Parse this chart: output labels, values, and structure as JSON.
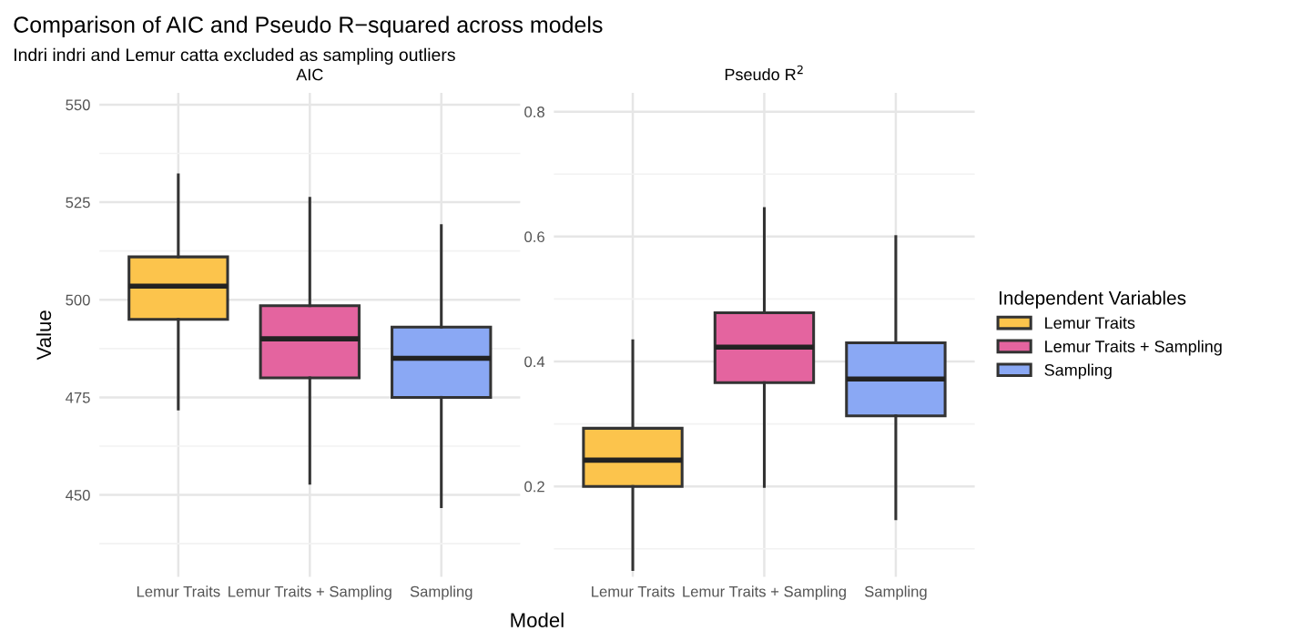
{
  "chart_data": [
    {
      "type": "box",
      "title": "Comparison of AIC and Pseudo R−squared across models",
      "subtitle": "Indri indri and Lemur catta excluded as sampling outliers",
      "annotations": [
        "AIC"
      ],
      "xlabel": "Model",
      "ylabel": "Value",
      "categories": [
        "Lemur Traits",
        "Lemur Traits + Sampling",
        "Sampling"
      ],
      "series": [
        {
          "color": "#fcc44c",
          "boxes": [
            {
              "low": 472,
              "q1": 495,
              "median": 503.5,
              "q3": 511,
              "high": 532
            },
            null,
            null
          ]
        },
        {
          "color": "#e4649f",
          "boxes": [
            null,
            {
              "low": 453,
              "q1": 480,
              "median": 490,
              "q3": 498.5,
              "high": 526
            },
            null
          ]
        },
        {
          "color": "#8aa8f4",
          "boxes": [
            null,
            null,
            {
              "low": 447,
              "q1": 475,
              "median": 485,
              "q3": 493,
              "high": 519
            }
          ]
        }
      ],
      "ylim": [
        429,
        553
      ],
      "yticks": [
        450,
        475,
        500,
        525,
        550
      ],
      "grid": true
    },
    {
      "type": "box",
      "annotations": [
        "Pseudo R$^{2}$"
      ],
      "legend_title": "Independent Variables",
      "categories": [
        "Lemur Traits",
        "Lemur Traits + Sampling",
        "Sampling"
      ],
      "series": [
        {
          "name": "Lemur Traits",
          "color": "#fcc44c",
          "boxes": [
            {
              "low": 0.067,
              "q1": 0.2,
              "median": 0.242,
              "q3": 0.293,
              "high": 0.433
            },
            null,
            null
          ]
        },
        {
          "name": "Lemur Traits + Sampling",
          "color": "#e4649f",
          "boxes": [
            null,
            {
              "low": 0.2,
              "q1": 0.366,
              "median": 0.423,
              "q3": 0.478,
              "high": 0.645
            },
            null
          ]
        },
        {
          "name": "Sampling",
          "color": "#8aa8f4",
          "boxes": [
            null,
            null,
            {
              "low": 0.148,
              "q1": 0.313,
              "median": 0.372,
              "q3": 0.43,
              "high": 0.6
            }
          ]
        }
      ],
      "ylim": [
        0.055,
        0.83
      ],
      "yticks": [
        0.2,
        0.4,
        0.6,
        0.8
      ],
      "grid": true,
      "legend": "right"
    }
  ]
}
